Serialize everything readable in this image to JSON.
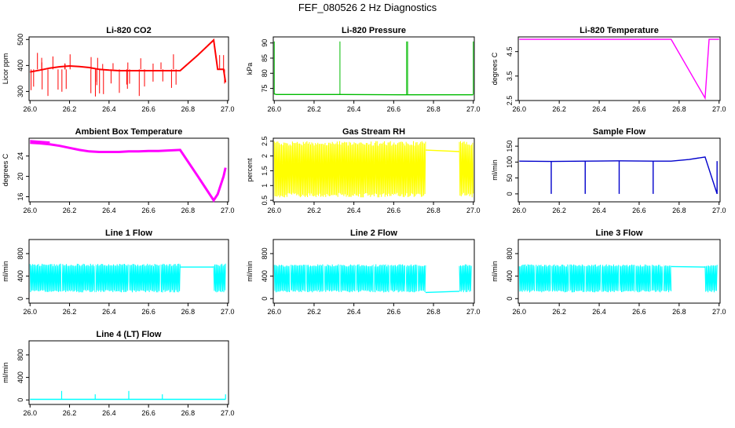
{
  "page_title": "FEF_080526  2 Hz Diagnostics",
  "chart_data": [
    {
      "id": "co2",
      "type": "line",
      "title": "Li-820 CO2",
      "ylabel": "Licor ppm",
      "color": "#ff0000",
      "xlim": [
        25.995,
        27.005
      ],
      "ylim": [
        265,
        510
      ],
      "xticks": [
        26.0,
        26.2,
        26.4,
        26.6,
        26.8,
        27.0
      ],
      "yticks": [
        300,
        400,
        500
      ],
      "x": [
        26.0,
        26.05,
        26.1,
        26.15,
        26.2,
        26.25,
        26.3,
        26.35,
        26.4,
        26.45,
        26.5,
        26.55,
        26.6,
        26.65,
        26.7,
        26.75,
        26.76,
        26.85,
        26.93,
        26.95,
        26.96,
        26.98,
        26.99
      ],
      "y": [
        375,
        382,
        390,
        395,
        398,
        396,
        392,
        385,
        382,
        380,
        380,
        380,
        380,
        380,
        380,
        380,
        380,
        440,
        498,
        385,
        385,
        385,
        335
      ]
    },
    {
      "id": "pressure",
      "type": "line",
      "title": "Li-820 Pressure",
      "ylabel": "kPa",
      "color": "#00bb00",
      "xlim": [
        25.995,
        27.005
      ],
      "ylim": [
        71,
        92
      ],
      "xticks": [
        26.0,
        26.2,
        26.4,
        26.6,
        26.8,
        27.0
      ],
      "yticks": [
        75,
        80,
        85,
        90
      ],
      "x": [
        26.0,
        26.01,
        26.33,
        26.34,
        26.66,
        26.67,
        26.99,
        27.0
      ],
      "y": [
        73.2,
        73.0,
        73.0,
        73.0,
        72.9,
        72.9,
        72.9,
        72.9
      ]
    },
    {
      "id": "temperature",
      "type": "line",
      "title": "Li-820 Temperature",
      "ylabel": "degrees C",
      "color": "#ff00ff",
      "xlim": [
        25.995,
        27.005
      ],
      "ylim": [
        2.5,
        5.1
      ],
      "xticks": [
        26.0,
        26.2,
        26.4,
        26.6,
        26.8,
        27.0
      ],
      "yticks": [
        2.5,
        3.5,
        4.5
      ],
      "x": [
        26.0,
        26.4,
        26.76,
        26.93,
        26.95,
        27.0
      ],
      "y": [
        5.0,
        5.0,
        5.0,
        2.6,
        5.0,
        5.0
      ]
    },
    {
      "id": "ambient",
      "type": "line",
      "title": "Ambient Box Temperature",
      "ylabel": "degrees C",
      "color": "#ff00ff",
      "xlim": [
        25.995,
        27.005
      ],
      "ylim": [
        15,
        27.5
      ],
      "xticks": [
        26.0,
        26.2,
        26.4,
        26.6,
        26.8,
        27.0
      ],
      "yticks": [
        16,
        20,
        24
      ],
      "x": [
        26.0,
        26.05,
        26.1,
        26.15,
        26.2,
        26.25,
        26.3,
        26.35,
        26.4,
        26.45,
        26.5,
        26.55,
        26.6,
        26.65,
        26.7,
        26.76,
        26.85,
        26.93,
        26.95,
        26.98,
        26.99
      ],
      "y": [
        26.6,
        26.5,
        26.3,
        26.0,
        25.6,
        25.2,
        24.9,
        24.8,
        24.8,
        24.8,
        24.9,
        24.9,
        25.0,
        25.0,
        25.1,
        25.2,
        20.0,
        15.3,
        16.5,
        20.0,
        21.7
      ]
    },
    {
      "id": "rh",
      "type": "line",
      "title": "Gas Stream RH",
      "ylabel": "percent",
      "color": "#ffff00",
      "xlim": [
        25.995,
        27.005
      ],
      "ylim": [
        0.45,
        2.6
      ],
      "xticks": [
        26.0,
        26.2,
        26.4,
        26.6,
        26.8,
        27.0
      ],
      "yticks": [
        0.5,
        1.0,
        1.5,
        2.0,
        2.5
      ],
      "band": [
        [
          26.0,
          26.76
        ],
        [
          26.93,
          27.0
        ]
      ],
      "band_low": 0.6,
      "band_high": 2.5,
      "x": [
        26.76,
        26.93
      ],
      "y": [
        2.2,
        2.15
      ]
    },
    {
      "id": "sample",
      "type": "line",
      "title": "Sample Flow",
      "ylabel": "ml/min",
      "color": "#0000cc",
      "xlim": [
        25.995,
        27.005
      ],
      "ylim": [
        -25,
        175
      ],
      "xticks": [
        26.0,
        26.2,
        26.4,
        26.6,
        26.8,
        27.0
      ],
      "yticks": [
        0,
        50,
        100,
        150
      ],
      "x": [
        26.0,
        26.16,
        26.33,
        26.5,
        26.67,
        26.76,
        26.85,
        26.93,
        26.99
      ],
      "y": [
        103,
        102,
        103,
        104,
        103,
        103,
        108,
        116,
        0
      ],
      "dips": [
        26.16,
        26.33,
        26.5,
        26.67,
        26.99
      ]
    },
    {
      "id": "line1",
      "type": "line",
      "title": "Line 1 Flow",
      "ylabel": "ml/min",
      "color": "#00ffff",
      "xlim": [
        25.995,
        27.005
      ],
      "ylim": [
        -80,
        1050
      ],
      "xticks": [
        26.0,
        26.2,
        26.4,
        26.6,
        26.8,
        27.0
      ],
      "yticks": [
        0,
        400,
        800
      ],
      "band": [
        [
          26.0,
          26.76
        ],
        [
          26.93,
          26.99
        ]
      ],
      "band_low": 110,
      "band_high": 620,
      "x": [
        26.76,
        26.93
      ],
      "y": [
        560,
        560
      ]
    },
    {
      "id": "line2",
      "type": "line",
      "title": "Line 2 Flow",
      "ylabel": "ml/min",
      "color": "#00ffff",
      "xlim": [
        25.995,
        27.005
      ],
      "ylim": [
        -80,
        1050
      ],
      "xticks": [
        26.0,
        26.2,
        26.4,
        26.6,
        26.8,
        27.0
      ],
      "yticks": [
        0,
        400,
        800
      ],
      "band": [
        [
          26.0,
          26.76
        ],
        [
          26.93,
          26.99
        ]
      ],
      "band_low": 110,
      "band_high": 610,
      "x": [
        26.76,
        26.93
      ],
      "y": [
        110,
        130
      ]
    },
    {
      "id": "line3",
      "type": "line",
      "title": "Line 3 Flow",
      "ylabel": "ml/min",
      "color": "#00ffff",
      "xlim": [
        25.995,
        27.005
      ],
      "ylim": [
        -80,
        1050
      ],
      "xticks": [
        26.0,
        26.2,
        26.4,
        26.6,
        26.8,
        27.0
      ],
      "yticks": [
        0,
        400,
        800
      ],
      "band": [
        [
          26.0,
          26.76
        ],
        [
          26.93,
          26.99
        ]
      ],
      "band_low": 110,
      "band_high": 610,
      "x": [
        26.76,
        26.93
      ],
      "y": [
        570,
        560
      ]
    },
    {
      "id": "line4",
      "type": "line",
      "title": "Line 4 (LT) Flow",
      "ylabel": "ml/min",
      "color": "#00ffff",
      "xlim": [
        25.995,
        27.005
      ],
      "ylim": [
        -80,
        1050
      ],
      "xticks": [
        26.0,
        26.2,
        26.4,
        26.6,
        26.8,
        27.0
      ],
      "yticks": [
        0,
        400,
        800
      ],
      "x": [
        26.0,
        26.5,
        26.99
      ],
      "y": [
        10,
        10,
        10
      ],
      "spikes": [
        [
          26.16,
          160
        ],
        [
          26.33,
          100
        ],
        [
          26.5,
          160
        ],
        [
          26.67,
          100
        ],
        [
          26.99,
          100
        ]
      ]
    }
  ]
}
